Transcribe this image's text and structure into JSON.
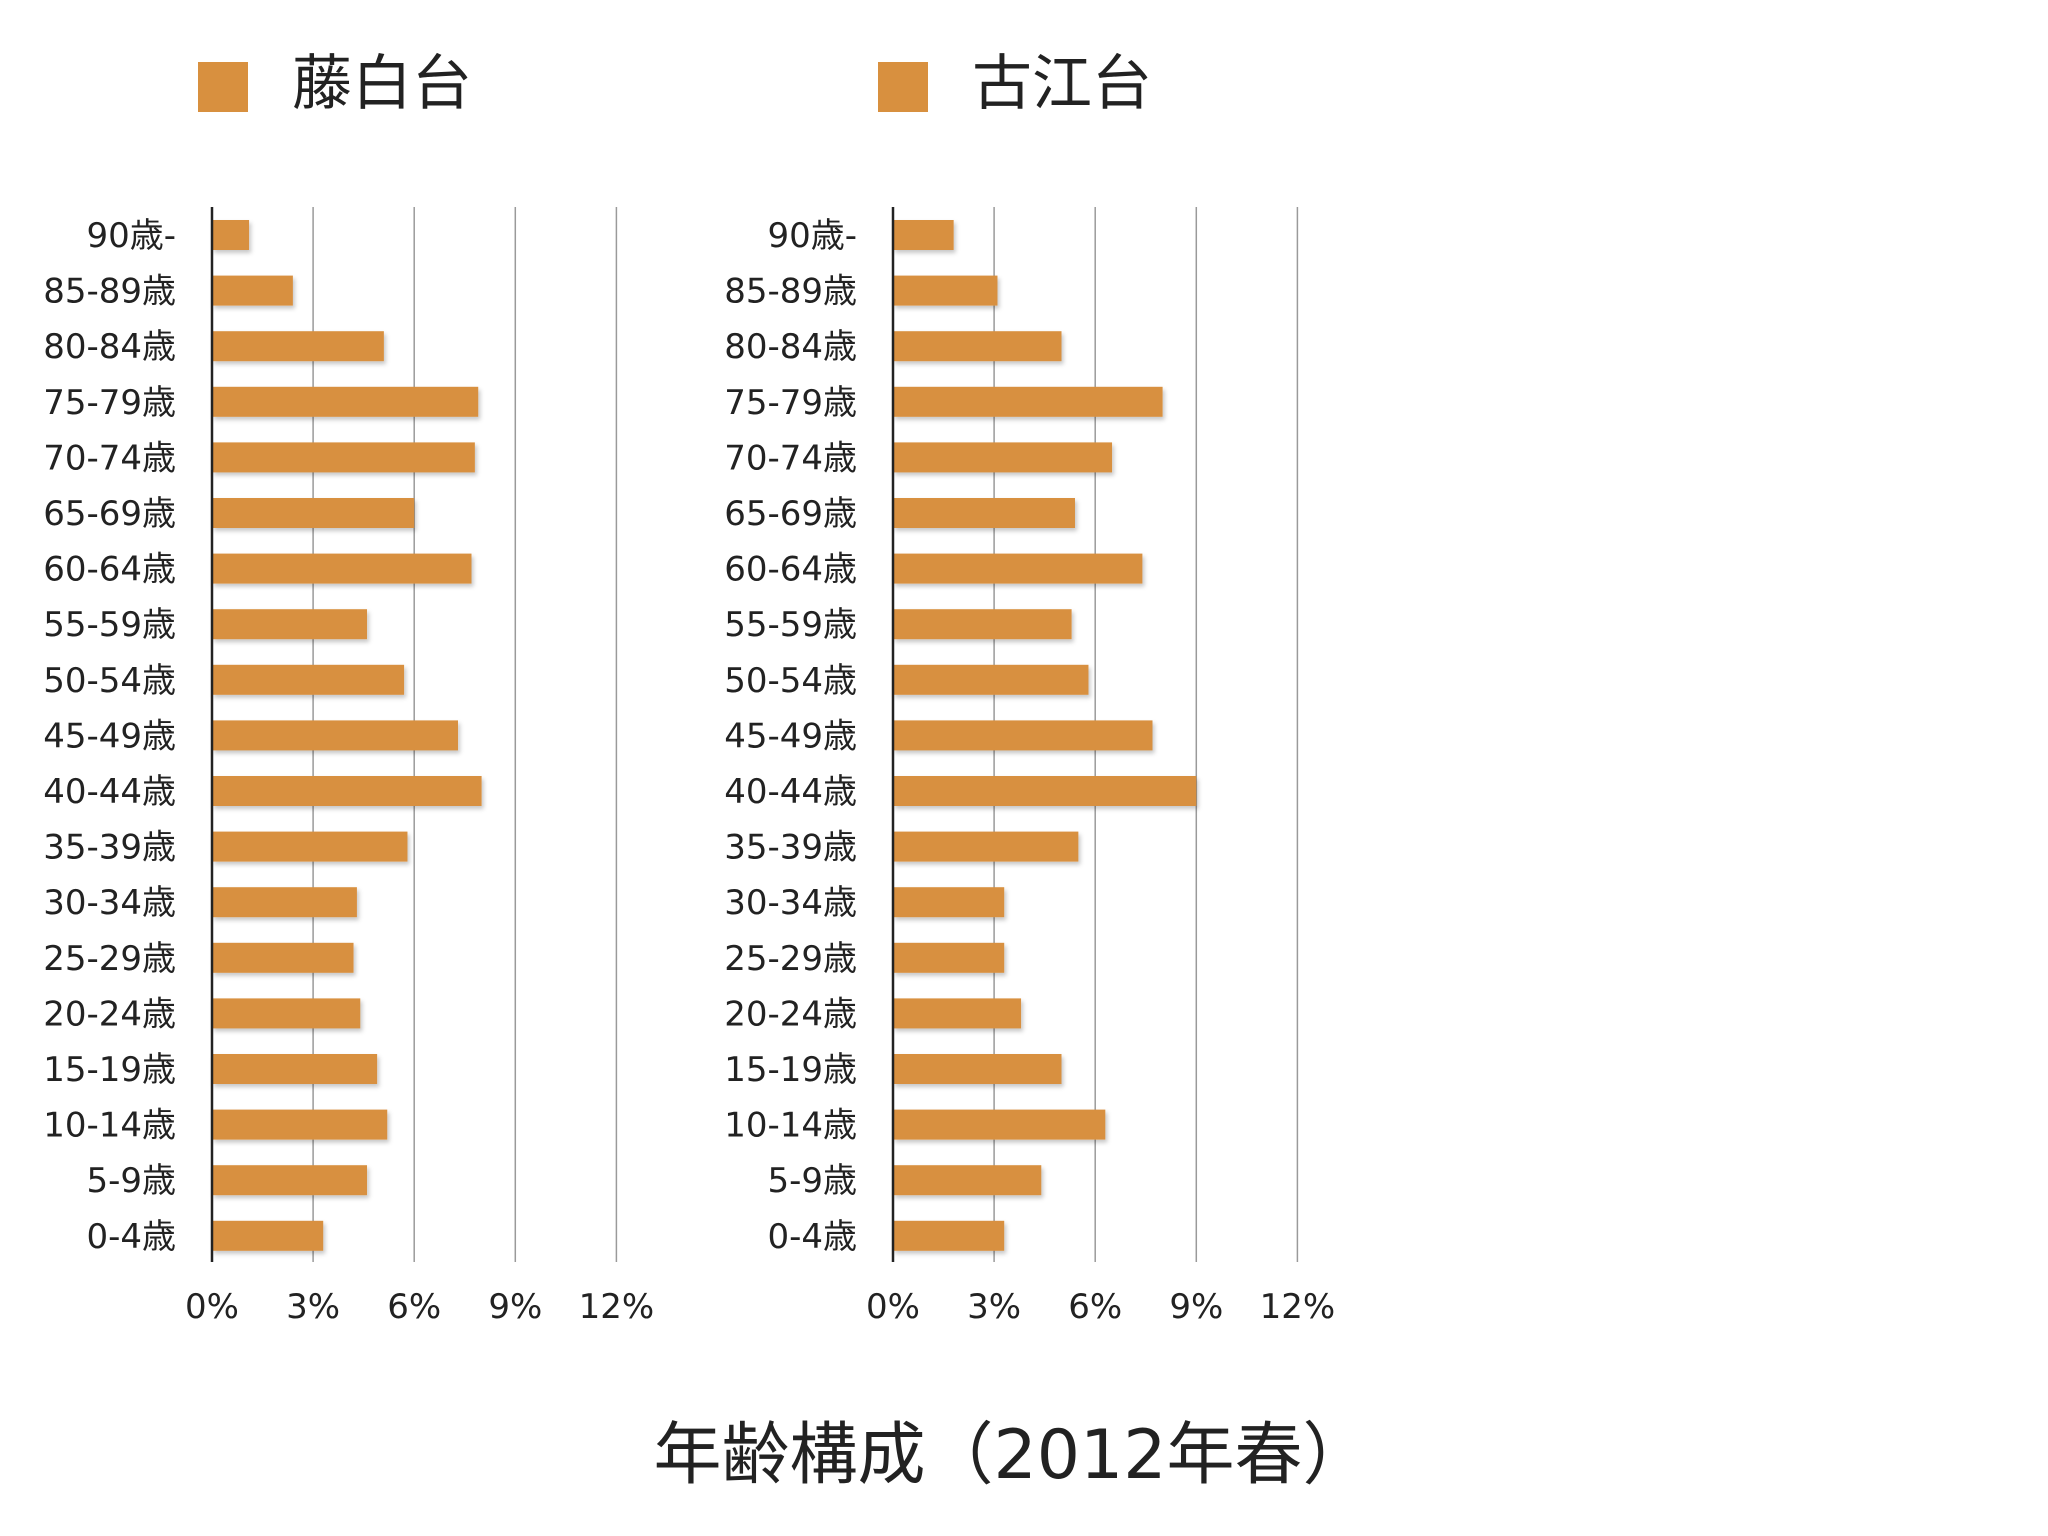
{
  "chart_data": [
    {
      "type": "bar",
      "orientation": "horizontal",
      "series": [
        {
          "name": "藤白台",
          "values": [
            1.1,
            2.4,
            5.1,
            7.9,
            7.8,
            6.0,
            7.7,
            4.6,
            5.7,
            7.3,
            8.0,
            5.8,
            4.3,
            4.2,
            4.4,
            4.9,
            5.2,
            4.6,
            3.3
          ]
        }
      ],
      "categories": [
        "90歳-",
        "85-89歳",
        "80-84歳",
        "75-79歳",
        "70-74歳",
        "65-69歳",
        "60-64歳",
        "55-59歳",
        "50-54歳",
        "45-49歳",
        "40-44歳",
        "35-39歳",
        "30-34歳",
        "25-29歳",
        "20-24歳",
        "15-19歳",
        "10-14歳",
        "5-9歳",
        "0-4歳"
      ],
      "x_ticks": [
        "0%",
        "3%",
        "6%",
        "9%",
        "12%"
      ],
      "xlim": [
        0,
        12
      ],
      "grid": true,
      "color": "#D8903F"
    },
    {
      "type": "bar",
      "orientation": "horizontal",
      "series": [
        {
          "name": "古江台",
          "values": [
            1.8,
            3.1,
            5.0,
            8.0,
            6.5,
            5.4,
            7.4,
            5.3,
            5.8,
            7.7,
            9.0,
            5.5,
            3.3,
            3.3,
            3.8,
            5.0,
            6.3,
            4.4,
            3.3
          ]
        }
      ],
      "categories": [
        "90歳-",
        "85-89歳",
        "80-84歳",
        "75-79歳",
        "70-74歳",
        "65-69歳",
        "60-64歳",
        "55-59歳",
        "50-54歳",
        "45-49歳",
        "40-44歳",
        "35-39歳",
        "30-34歳",
        "25-29歳",
        "20-24歳",
        "15-19歳",
        "10-14歳",
        "5-9歳",
        "0-4歳"
      ],
      "x_ticks": [
        "0%",
        "3%",
        "6%",
        "9%",
        "12%"
      ],
      "xlim": [
        0,
        12
      ],
      "grid": true,
      "color": "#D8903F"
    }
  ],
  "footer": {
    "title": "年齢構成（2012年春）"
  }
}
